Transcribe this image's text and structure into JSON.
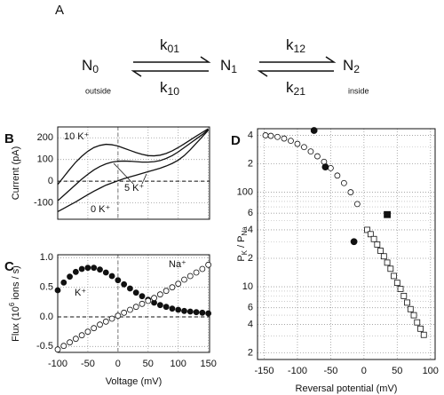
{
  "panel_a": {
    "label": "A",
    "states": [
      [
        {
          "t": "N"
        },
        {
          "t": "0",
          "sub": true
        }
      ],
      [
        {
          "t": "N"
        },
        {
          "t": "1",
          "sub": true
        }
      ],
      [
        {
          "t": "N"
        },
        {
          "t": "2",
          "sub": true
        }
      ]
    ],
    "rates": [
      [
        {
          "t": "k"
        },
        {
          "t": "01",
          "sub": true
        }
      ],
      [
        {
          "t": "k"
        },
        {
          "t": "10",
          "sub": true
        }
      ],
      [
        {
          "t": "k"
        },
        {
          "t": "12",
          "sub": true
        }
      ],
      [
        {
          "t": "k"
        },
        {
          "t": "21",
          "sub": true
        }
      ]
    ],
    "outside": "outside",
    "inside": "inside"
  },
  "chart_data": [
    {
      "type": "line",
      "panel": "B",
      "ylabel": "Current (pA)",
      "xlim": [
        -100,
        152
      ],
      "xticks": [
        -100,
        -50,
        0,
        50,
        100,
        150
      ],
      "ylim": [
        -175,
        250
      ],
      "yticks": [
        -100,
        0,
        100,
        200
      ],
      "grid": true,
      "x": [
        -100,
        -90,
        -80,
        -70,
        -60,
        -50,
        -40,
        -30,
        -20,
        -10,
        0,
        10,
        20,
        30,
        40,
        50,
        60,
        70,
        80,
        90,
        100,
        110,
        120,
        130,
        140,
        150
      ],
      "series": [
        {
          "label": "10 K⁺",
          "color": "#111111",
          "values": [
            -15,
            20,
            55,
            88,
            115,
            138,
            155,
            165,
            170,
            168,
            162,
            152,
            142,
            132,
            124,
            118,
            117,
            120,
            128,
            140,
            155,
            172,
            190,
            208,
            225,
            242
          ]
        },
        {
          "label": "5 K⁺",
          "color": "#111111",
          "values": [
            -90,
            -65,
            -40,
            -15,
            10,
            32,
            52,
            68,
            80,
            88,
            92,
            93,
            92,
            90,
            88,
            88,
            90,
            95,
            105,
            118,
            135,
            155,
            175,
            195,
            215,
            238
          ]
        },
        {
          "label": "0 K⁺",
          "color": "#111111",
          "values": [
            -140,
            -125,
            -110,
            -95,
            -78,
            -62,
            -46,
            -32,
            -18,
            -8,
            2,
            12,
            20,
            28,
            36,
            44,
            52,
            60,
            70,
            82,
            97,
            118,
            145,
            175,
            205,
            235
          ]
        }
      ]
    },
    {
      "type": "scatter",
      "panel": "C",
      "xlabel": "Voltage (mV)",
      "ylabel": [
        {
          "t": "Flux (10"
        },
        {
          "t": "6",
          "sup": true
        },
        {
          "t": " ions / s)"
        }
      ],
      "xlim": [
        -100,
        152
      ],
      "xticks": [
        -100,
        -50,
        0,
        50,
        100,
        150
      ],
      "ylim": [
        -0.6,
        1.05
      ],
      "yticks": [
        {
          "value": 1.0,
          "label": "1.0"
        },
        0.5,
        {
          "value": 0.0,
          "label": "0.0"
        },
        -0.5
      ],
      "grid": true,
      "series": [
        {
          "label": "K⁺",
          "marker": "circle",
          "filled": true,
          "color": "#111111",
          "x": [
            -100,
            -90,
            -80,
            -70,
            -60,
            -50,
            -40,
            -30,
            -20,
            -10,
            0,
            10,
            20,
            30,
            40,
            50,
            60,
            70,
            80,
            90,
            100,
            110,
            120,
            130,
            140,
            150
          ],
          "values": [
            0.45,
            0.58,
            0.68,
            0.76,
            0.81,
            0.83,
            0.83,
            0.8,
            0.75,
            0.69,
            0.62,
            0.55,
            0.48,
            0.41,
            0.35,
            0.29,
            0.24,
            0.2,
            0.17,
            0.14,
            0.12,
            0.1,
            0.09,
            0.08,
            0.07,
            0.06
          ]
        },
        {
          "label": "Na⁺",
          "marker": "circle",
          "filled": false,
          "color": "#111111",
          "x": [
            -100,
            -90,
            -80,
            -70,
            -60,
            -50,
            -40,
            -30,
            -20,
            -10,
            0,
            10,
            20,
            30,
            40,
            50,
            60,
            70,
            80,
            90,
            100,
            110,
            120,
            130,
            140,
            150
          ],
          "values": [
            -0.55,
            -0.49,
            -0.43,
            -0.37,
            -0.31,
            -0.25,
            -0.19,
            -0.13,
            -0.08,
            -0.03,
            0.02,
            0.07,
            0.12,
            0.17,
            0.22,
            0.27,
            0.32,
            0.38,
            0.44,
            0.5,
            0.56,
            0.63,
            0.69,
            0.75,
            0.81,
            0.88
          ]
        }
      ]
    },
    {
      "type": "scatter",
      "panel": "D",
      "xlabel": "Reversal potential (mV)",
      "ylabel": [
        {
          "t": "P"
        },
        {
          "t": "K",
          "sub": true
        },
        {
          "t": " / P"
        },
        {
          "t": "Na",
          "sub": true
        }
      ],
      "log_y": true,
      "xlim": [
        -160,
        107
      ],
      "xticks": [
        -150,
        -100,
        -50,
        0,
        50,
        100
      ],
      "ylim": [
        1.7,
        470
      ],
      "yticks": [
        2,
        4,
        6,
        10,
        {
          "value": 20,
          "label": "2"
        },
        {
          "value": 40,
          "label": "4"
        },
        {
          "value": 60,
          "label": "6"
        },
        100,
        {
          "value": 200,
          "label": "2"
        },
        {
          "value": 400,
          "label": "4"
        }
      ],
      "yminor": [
        3,
        5,
        7,
        8,
        9,
        30,
        50,
        70,
        80,
        90,
        300
      ],
      "grid": true,
      "series": [
        {
          "marker": "circle",
          "filled": false,
          "color": "#111111",
          "x": [
            -148,
            -140,
            -130,
            -120,
            -110,
            -100,
            -90,
            -80,
            -70,
            -60,
            -50,
            -40,
            -30,
            -20,
            -10
          ],
          "values": [
            400,
            395,
            385,
            370,
            350,
            325,
            300,
            270,
            240,
            210,
            180,
            150,
            125,
            100,
            75
          ]
        },
        {
          "marker": "square",
          "filled": false,
          "color": "#111111",
          "x": [
            5,
            10,
            15,
            20,
            25,
            30,
            35,
            40,
            45,
            50,
            55,
            60,
            65,
            70,
            75,
            80,
            85,
            90
          ],
          "values": [
            40,
            36,
            32,
            28,
            24,
            21,
            18,
            15.5,
            13,
            11,
            9.5,
            8,
            6.8,
            5.8,
            5,
            4.2,
            3.6,
            3.1
          ]
        },
        {
          "marker": "circle",
          "filled": true,
          "color": "#111111",
          "x": [
            -75,
            -58,
            -15
          ],
          "values": [
            450,
            185,
            30
          ]
        },
        {
          "marker": "square",
          "filled": true,
          "color": "#111111",
          "x": [
            35
          ],
          "values": [
            58
          ]
        }
      ]
    }
  ]
}
